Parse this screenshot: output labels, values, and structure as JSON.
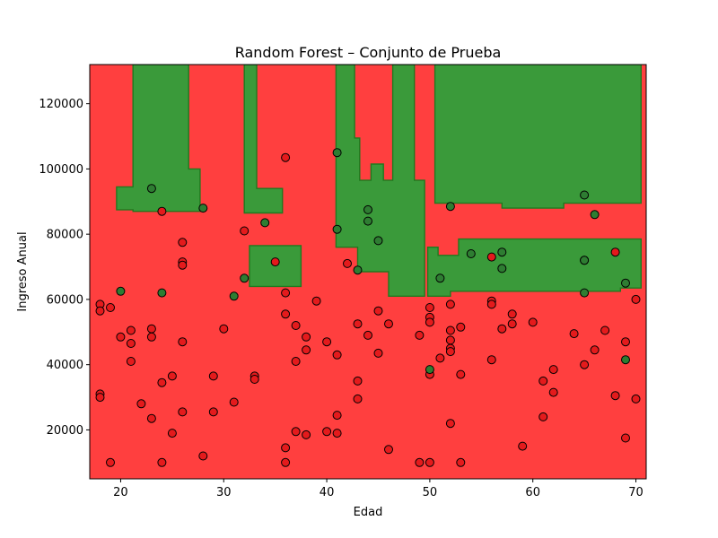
{
  "chart_data": {
    "type": "scatter",
    "title": "Random Forest – Conjunto de Prueba",
    "xlabel": "Edad",
    "ylabel": "Ingreso Anual",
    "xlim": [
      17,
      71
    ],
    "ylim": [
      5000,
      132000
    ],
    "xticks": [
      20,
      30,
      40,
      50,
      60,
      70
    ],
    "yticks": [
      20000,
      40000,
      60000,
      80000,
      100000,
      120000
    ],
    "grid": false,
    "background_class": {
      "name": "0",
      "color": "#ff3f3f"
    },
    "regions": [
      {
        "class": "1",
        "color": "#3a9a3a",
        "polygon": [
          [
            21.2,
            132000
          ],
          [
            26.6,
            132000
          ],
          [
            26.6,
            100000
          ],
          [
            27.7,
            100000
          ],
          [
            27.7,
            87000
          ],
          [
            21.2,
            87000
          ],
          [
            21.2,
            87500
          ],
          [
            19.6,
            87500
          ],
          [
            19.6,
            94500
          ],
          [
            21.2,
            94500
          ]
        ]
      },
      {
        "class": "1",
        "color": "#3a9a3a",
        "polygon": [
          [
            32.0,
            132000
          ],
          [
            33.2,
            132000
          ],
          [
            33.2,
            94000
          ],
          [
            35.7,
            94000
          ],
          [
            35.7,
            86500
          ],
          [
            32.0,
            86500
          ]
        ]
      },
      {
        "class": "1",
        "color": "#3a9a3a",
        "polygon": [
          [
            32.5,
            76500
          ],
          [
            37.5,
            76500
          ],
          [
            37.5,
            64000
          ],
          [
            32.5,
            64000
          ]
        ]
      },
      {
        "class": "1",
        "color": "#3a9a3a",
        "polygon": [
          [
            40.9,
            132000
          ],
          [
            42.7,
            132000
          ],
          [
            42.7,
            109500
          ],
          [
            43.2,
            109500
          ],
          [
            43.2,
            96500
          ],
          [
            44.3,
            96500
          ],
          [
            44.3,
            101500
          ],
          [
            45.5,
            101500
          ],
          [
            45.5,
            96500
          ],
          [
            46.4,
            96500
          ],
          [
            46.4,
            132000
          ],
          [
            48.5,
            132000
          ],
          [
            48.5,
            96500
          ],
          [
            49.5,
            96500
          ],
          [
            49.5,
            61000
          ],
          [
            46.0,
            61000
          ],
          [
            46.0,
            68500
          ],
          [
            43.0,
            68500
          ],
          [
            43.0,
            76000
          ],
          [
            40.9,
            76000
          ]
        ]
      },
      {
        "class": "1",
        "color": "#3a9a3a",
        "polygon": [
          [
            50.5,
            132000
          ],
          [
            70.5,
            132000
          ],
          [
            70.5,
            89500
          ],
          [
            63.0,
            89500
          ],
          [
            63.0,
            88000
          ],
          [
            57.0,
            88000
          ],
          [
            57.0,
            89500
          ],
          [
            50.5,
            89500
          ]
        ]
      },
      {
        "class": "1",
        "color": "#3a9a3a",
        "polygon": [
          [
            49.8,
            76000
          ],
          [
            50.8,
            76000
          ],
          [
            50.8,
            73500
          ],
          [
            52.8,
            73500
          ],
          [
            52.8,
            78500
          ],
          [
            70.5,
            78500
          ],
          [
            70.5,
            63500
          ],
          [
            68.5,
            63500
          ],
          [
            68.5,
            62500
          ],
          [
            52.0,
            62500
          ],
          [
            52.0,
            61000
          ],
          [
            49.8,
            61000
          ]
        ]
      }
    ],
    "series": [
      {
        "name": "0",
        "color": "#e41a1c",
        "points": [
          [
            18,
            58500
          ],
          [
            18,
            56500
          ],
          [
            18,
            31000
          ],
          [
            18,
            30000
          ],
          [
            19,
            57500
          ],
          [
            19,
            10000
          ],
          [
            20,
            48500
          ],
          [
            21,
            50500
          ],
          [
            21,
            46500
          ],
          [
            21,
            41000
          ],
          [
            22,
            28000
          ],
          [
            23,
            51000
          ],
          [
            23,
            48500
          ],
          [
            23,
            23500
          ],
          [
            24,
            87000
          ],
          [
            24,
            34500
          ],
          [
            24,
            10000
          ],
          [
            25,
            36500
          ],
          [
            25,
            19000
          ],
          [
            26,
            77500
          ],
          [
            26,
            71500
          ],
          [
            26,
            70500
          ],
          [
            26,
            47000
          ],
          [
            26,
            25500
          ],
          [
            28,
            12000
          ],
          [
            29,
            36500
          ],
          [
            29,
            25500
          ],
          [
            30,
            51000
          ],
          [
            31,
            28500
          ],
          [
            32,
            81000
          ],
          [
            33,
            36500
          ],
          [
            33,
            35500
          ],
          [
            35,
            71500
          ],
          [
            36,
            103500
          ],
          [
            36,
            62000
          ],
          [
            36,
            55500
          ],
          [
            36,
            14500
          ],
          [
            36,
            10000
          ],
          [
            37,
            52000
          ],
          [
            37,
            41000
          ],
          [
            37,
            19500
          ],
          [
            38,
            48500
          ],
          [
            38,
            44500
          ],
          [
            38,
            18500
          ],
          [
            39,
            59500
          ],
          [
            40,
            47000
          ],
          [
            40,
            19500
          ],
          [
            41,
            43000
          ],
          [
            41,
            24500
          ],
          [
            41,
            19000
          ],
          [
            42,
            71000
          ],
          [
            43,
            52500
          ],
          [
            43,
            35000
          ],
          [
            43,
            29500
          ],
          [
            44,
            49000
          ],
          [
            45,
            56500
          ],
          [
            45,
            43500
          ],
          [
            46,
            52500
          ],
          [
            46,
            14000
          ],
          [
            49,
            49000
          ],
          [
            49,
            10000
          ],
          [
            50,
            57500
          ],
          [
            50,
            54500
          ],
          [
            50,
            53000
          ],
          [
            50,
            37000
          ],
          [
            50,
            10000
          ],
          [
            51,
            42000
          ],
          [
            52,
            58500
          ],
          [
            52,
            50500
          ],
          [
            52,
            47500
          ],
          [
            52,
            45000
          ],
          [
            52,
            44000
          ],
          [
            52,
            22000
          ],
          [
            53,
            51500
          ],
          [
            53,
            37000
          ],
          [
            53,
            10000
          ],
          [
            56,
            73000
          ],
          [
            56,
            59500
          ],
          [
            56,
            58500
          ],
          [
            56,
            41500
          ],
          [
            57,
            51000
          ],
          [
            58,
            55500
          ],
          [
            58,
            52500
          ],
          [
            59,
            15000
          ],
          [
            60,
            53000
          ],
          [
            61,
            35000
          ],
          [
            61,
            24000
          ],
          [
            62,
            38500
          ],
          [
            62,
            31500
          ],
          [
            64,
            49500
          ],
          [
            65,
            72000
          ],
          [
            65,
            40000
          ],
          [
            66,
            44500
          ],
          [
            67,
            50500
          ],
          [
            68,
            74500
          ],
          [
            68,
            30500
          ],
          [
            69,
            47000
          ],
          [
            69,
            17500
          ],
          [
            70,
            60000
          ],
          [
            70,
            29500
          ]
        ]
      },
      {
        "name": "1",
        "color": "#2e7d32",
        "points": [
          [
            20,
            62500
          ],
          [
            23,
            94000
          ],
          [
            24,
            62000
          ],
          [
            28,
            88000
          ],
          [
            31,
            61000
          ],
          [
            32,
            66500
          ],
          [
            34,
            83500
          ],
          [
            41,
            105000
          ],
          [
            41,
            81500
          ],
          [
            43,
            69000
          ],
          [
            44,
            87500
          ],
          [
            44,
            84000
          ],
          [
            45,
            78000
          ],
          [
            50,
            38500
          ],
          [
            51,
            66500
          ],
          [
            52,
            88500
          ],
          [
            54,
            74000
          ],
          [
            57,
            74500
          ],
          [
            57,
            69500
          ],
          [
            65,
            92000
          ],
          [
            65,
            72000
          ],
          [
            65,
            62000
          ],
          [
            66,
            86000
          ],
          [
            69,
            65000
          ],
          [
            69,
            41500
          ]
        ]
      }
    ]
  }
}
